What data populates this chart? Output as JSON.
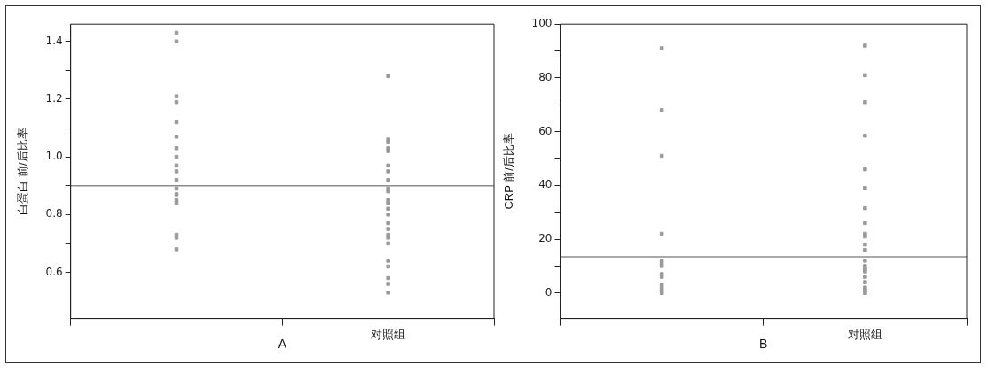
{
  "chart_data": [
    {
      "type": "scatter",
      "xlabel": "A",
      "ylabel": "白蛋白 前/后比率",
      "categories": [
        null,
        "对照组"
      ],
      "marker": "square",
      "series": [
        {
          "color": "#9a9a9a",
          "x": [
            null,
            null,
            null,
            null,
            null,
            null,
            null,
            null,
            null,
            null,
            null,
            null,
            null,
            null,
            null,
            null,
            null,
            null
          ],
          "values": [
            1.43,
            1.4,
            1.21,
            1.19,
            1.12,
            1.07,
            1.03,
            1.0,
            0.97,
            0.95,
            0.92,
            0.89,
            0.87,
            0.85,
            0.84,
            0.73,
            0.72,
            0.68
          ]
        },
        {
          "color": "#9a9a9a",
          "x": [
            "对照组",
            "对照组",
            "对照组",
            "对照组",
            "对照组",
            "对照组",
            "对照组",
            "对照组",
            "对照组",
            "对照组",
            "对照组",
            "对照组",
            "对照组",
            "对照组",
            "对照组",
            "对照组",
            "对照组",
            "对照组",
            "对照组",
            "对照组",
            "对照组",
            "对照组",
            "对照组",
            "对照组"
          ],
          "values": [
            1.28,
            1.06,
            1.05,
            1.03,
            1.02,
            0.97,
            0.95,
            0.92,
            0.89,
            0.88,
            0.85,
            0.84,
            0.82,
            0.8,
            0.77,
            0.75,
            0.73,
            0.72,
            0.7,
            0.64,
            0.62,
            0.58,
            0.56,
            0.53
          ]
        }
      ],
      "ylim": [
        0.44,
        1.46
      ],
      "yticks": [
        0.6,
        {
          "value": 0.7,
          "label": null
        },
        0.8,
        {
          "value": 0.9,
          "label": null
        },
        {
          "value": 1.0,
          "label": "1.0"
        },
        {
          "value": 1.1,
          "label": null
        },
        1.2,
        {
          "value": 1.3,
          "label": null
        },
        1.4
      ],
      "ref_lines": [
        {
          "axis": "y",
          "value": 0.9,
          "color": "#8c8c8c"
        }
      ],
      "grid": false,
      "legend": false
    },
    {
      "type": "scatter",
      "xlabel": "B",
      "ylabel": "CRP 前/后比率",
      "categories": [
        null,
        "对照组"
      ],
      "marker": "square",
      "series": [
        {
          "color": "#9a9a9a",
          "x": [
            null,
            null,
            null,
            null,
            null,
            null,
            null,
            null,
            null,
            null,
            null,
            null,
            null
          ],
          "values": [
            91,
            68,
            51,
            22,
            12,
            11,
            10,
            7,
            6,
            3,
            2,
            1,
            0
          ]
        },
        {
          "color": "#9a9a9a",
          "x": [
            "对照组",
            "对照组",
            "对照组",
            "对照组",
            "对照组",
            "对照组",
            "对照组",
            "对照组",
            "对照组",
            "对照组",
            "对照组",
            "对照组",
            "对照组",
            "对照组",
            "对照组",
            "对照组",
            "对照组",
            "对照组",
            "对照组",
            "对照组",
            "对照组"
          ],
          "values": [
            92,
            81,
            71,
            58.5,
            46,
            39,
            31.5,
            26,
            22,
            21,
            18,
            16,
            12,
            10,
            9,
            8,
            6,
            4,
            2,
            1,
            0
          ]
        }
      ],
      "ylim": [
        -9.5,
        100
      ],
      "yticks": [
        0,
        {
          "value": 10,
          "label": null
        },
        20,
        {
          "value": 30,
          "label": null
        },
        40,
        {
          "value": 50,
          "label": null
        },
        60,
        {
          "value": 70,
          "label": null
        },
        80,
        {
          "value": 90,
          "label": null
        },
        100
      ],
      "ref_lines": [
        {
          "axis": "y",
          "value": 13.4,
          "color": "#8c8c8c"
        }
      ],
      "grid": false,
      "legend": false
    }
  ]
}
